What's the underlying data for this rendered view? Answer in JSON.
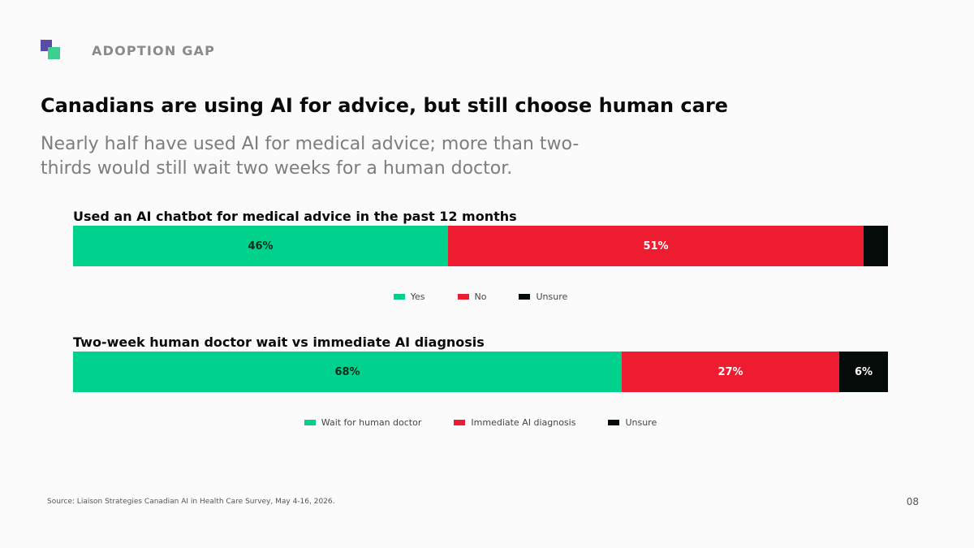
{
  "header": {
    "section_label": "ADOPTION GAP",
    "logo_colors": [
      "#5b4ba8",
      "#3ecf8e"
    ]
  },
  "title": "Canadians are using AI for advice, but still choose human care",
  "subtitle": "Nearly half have used AI for medical advice; more than two-thirds would still wait two weeks for a human doctor.",
  "chart_data": [
    {
      "type": "bar",
      "orientation": "horizontal-stacked-100",
      "title": "Used an AI chatbot for medical advice in the past 12 months",
      "legend_position": "bottom-center",
      "series": [
        {
          "name": "Yes",
          "value": 46,
          "label": "46%",
          "color": "#00d28e",
          "label_color": "#0a2a1a"
        },
        {
          "name": "No",
          "value": 51,
          "label": "51%",
          "color": "#ee1c30",
          "label_color": "#ffffff"
        },
        {
          "name": "Unsure",
          "value": 3,
          "label": "",
          "color": "#050b08",
          "label_color": "#ffffff"
        }
      ]
    },
    {
      "type": "bar",
      "orientation": "horizontal-stacked-100",
      "title": "Two-week human doctor wait vs immediate AI diagnosis",
      "legend_position": "bottom-center",
      "series": [
        {
          "name": "Wait for human doctor",
          "value": 68,
          "label": "68%",
          "color": "#00d28e",
          "label_color": "#0a2a1a"
        },
        {
          "name": "Immediate AI diagnosis",
          "value": 27,
          "label": "27%",
          "color": "#ee1c30",
          "label_color": "#ffffff"
        },
        {
          "name": "Unsure",
          "value": 6,
          "label": "6%",
          "color": "#050b08",
          "label_color": "#ffffff"
        }
      ]
    }
  ],
  "footer": {
    "source": "Source: Liaison Strategies Canadian AI in Health Care Survey, May 4-16, 2026.",
    "page_number": "08"
  }
}
